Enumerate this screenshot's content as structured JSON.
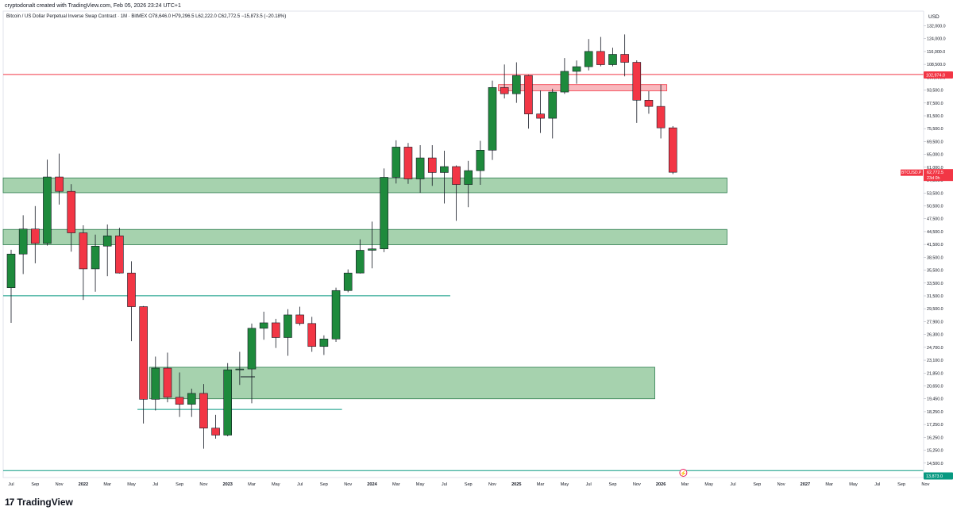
{
  "header": {
    "creator_line": "cryptodonalt created with TradingView.com, Feb 05, 2026 23:24 UTC+1",
    "symbol_line": "Bitcoin / US Dollar Perpetual Inverse Swap Contract · 1M · BitMEX  O78,646.0  H79,296.5  L62,222.0  C62,772.5  −15,873.5 (−20.18%)"
  },
  "logo": {
    "mark": "17",
    "text": "TradingView"
  },
  "price_scale": {
    "currency": "USD",
    "ticks": [
      "132,000.0",
      "124,000.0",
      "116,000.0",
      "108,500.0",
      "100,500.0",
      "93,500.0",
      "87,500.0",
      "81,500.0",
      "75,500.0",
      "69,500.0",
      "65,000.0",
      "61,000.0",
      "57,500.0",
      "53,500.0",
      "50,500.0",
      "47,500.0",
      "44,500.0",
      "41,500.0",
      "38,500.0",
      "35,500.0",
      "33,500.0",
      "31,500.0",
      "29,500.0",
      "27,900.0",
      "26,300.0",
      "24,700.0",
      "23,100.0",
      "21,850.0",
      "20,650.0",
      "19,450.0",
      "18,250.0",
      "17,250.0",
      "16,250.0",
      "15,250.0",
      "14,500.0",
      "13,873.0"
    ],
    "ticks_top_value": 132000,
    "top_marker": {
      "label": "102,974.0",
      "color": "#f23645"
    },
    "last_price_marker": {
      "symbol": "BTCUSD.P",
      "price": "62,772.5",
      "countdown": "23d 0h",
      "color": "#f23645"
    },
    "bottom_marker": {
      "label": "13,873.0",
      "color": "#089981"
    }
  },
  "time_axis": [
    "Jul",
    "Sep",
    "Nov",
    "2022",
    "Mar",
    "May",
    "Jul",
    "Sep",
    "Nov",
    "2023",
    "Mar",
    "May",
    "Jul",
    "Sep",
    "Nov",
    "2024",
    "Mar",
    "May",
    "Jul",
    "Sep",
    "Nov",
    "2025",
    "Mar",
    "May",
    "Jul",
    "Sep",
    "Nov",
    "2026",
    "Mar",
    "May",
    "Jul",
    "Sep",
    "Nov",
    "2027",
    "Mar",
    "May",
    "Jul",
    "Sep",
    "Nov"
  ],
  "chart_data": {
    "type": "candlestick",
    "timeframe": "1M",
    "colors": {
      "up": "#1e8a3c",
      "down": "#f23645"
    },
    "candles": [
      {
        "d": "2021-07",
        "o": 35000,
        "h": 42400,
        "l": 29300,
        "c": 41500
      },
      {
        "d": "2021-08",
        "o": 41500,
        "h": 50500,
        "l": 37500,
        "c": 47100
      },
      {
        "d": "2021-09",
        "o": 47100,
        "h": 52900,
        "l": 39600,
        "c": 43800
      },
      {
        "d": "2021-10",
        "o": 43800,
        "h": 66900,
        "l": 43300,
        "c": 61300
      },
      {
        "d": "2021-11",
        "o": 61300,
        "h": 69000,
        "l": 53300,
        "c": 57000
      },
      {
        "d": "2021-12",
        "o": 57000,
        "h": 59100,
        "l": 42000,
        "c": 46200
      },
      {
        "d": "2022-01",
        "o": 46200,
        "h": 48000,
        "l": 32900,
        "c": 38500
      },
      {
        "d": "2022-02",
        "o": 38500,
        "h": 45800,
        "l": 34300,
        "c": 43200
      },
      {
        "d": "2022-03",
        "o": 43200,
        "h": 48200,
        "l": 37100,
        "c": 45500
      },
      {
        "d": "2022-04",
        "o": 45500,
        "h": 47400,
        "l": 37600,
        "c": 37700
      },
      {
        "d": "2022-05",
        "o": 37700,
        "h": 40000,
        "l": 26700,
        "c": 31800
      },
      {
        "d": "2022-06",
        "o": 31800,
        "h": 31900,
        "l": 17600,
        "c": 19900
      },
      {
        "d": "2022-07",
        "o": 19900,
        "h": 24700,
        "l": 18800,
        "c": 23300
      },
      {
        "d": "2022-08",
        "o": 23300,
        "h": 25200,
        "l": 19600,
        "c": 20100
      },
      {
        "d": "2022-09",
        "o": 20100,
        "h": 22800,
        "l": 18200,
        "c": 19400
      },
      {
        "d": "2022-10",
        "o": 19400,
        "h": 21000,
        "l": 18200,
        "c": 20500
      },
      {
        "d": "2022-11",
        "o": 20500,
        "h": 21500,
        "l": 15500,
        "c": 17200
      },
      {
        "d": "2022-12",
        "o": 17200,
        "h": 18400,
        "l": 16300,
        "c": 16600
      },
      {
        "d": "2023-01",
        "o": 16600,
        "h": 23900,
        "l": 16500,
        "c": 23100
      },
      {
        "d": "2023-02",
        "o": 23100,
        "h": 25300,
        "l": 21400,
        "c": 23200
      },
      {
        "d": "2023-03",
        "o": 23200,
        "h": 29200,
        "l": 19500,
        "c": 28500
      },
      {
        "d": "2023-04",
        "o": 28500,
        "h": 31000,
        "l": 26900,
        "c": 29300
      },
      {
        "d": "2023-05",
        "o": 29300,
        "h": 29900,
        "l": 25800,
        "c": 27200
      },
      {
        "d": "2023-06",
        "o": 27200,
        "h": 31400,
        "l": 24800,
        "c": 30500
      },
      {
        "d": "2023-07",
        "o": 30500,
        "h": 31800,
        "l": 28900,
        "c": 29200
      },
      {
        "d": "2023-08",
        "o": 29200,
        "h": 30200,
        "l": 25300,
        "c": 26000
      },
      {
        "d": "2023-09",
        "o": 26000,
        "h": 27500,
        "l": 24900,
        "c": 27000
      },
      {
        "d": "2023-10",
        "o": 27000,
        "h": 35000,
        "l": 26600,
        "c": 34500
      },
      {
        "d": "2023-11",
        "o": 34500,
        "h": 38400,
        "l": 34200,
        "c": 37700
      },
      {
        "d": "2023-12",
        "o": 37700,
        "h": 44700,
        "l": 37600,
        "c": 42300
      },
      {
        "d": "2024-01",
        "o": 42300,
        "h": 48900,
        "l": 38600,
        "c": 42600
      },
      {
        "d": "2024-02",
        "o": 42600,
        "h": 64000,
        "l": 41900,
        "c": 61200
      },
      {
        "d": "2024-03",
        "o": 61200,
        "h": 73800,
        "l": 59300,
        "c": 71300
      },
      {
        "d": "2024-04",
        "o": 71300,
        "h": 72800,
        "l": 59200,
        "c": 60700
      },
      {
        "d": "2024-05",
        "o": 60700,
        "h": 72000,
        "l": 56600,
        "c": 67500
      },
      {
        "d": "2024-06",
        "o": 67500,
        "h": 72000,
        "l": 58600,
        "c": 62700
      },
      {
        "d": "2024-07",
        "o": 62700,
        "h": 70000,
        "l": 53600,
        "c": 64600
      },
      {
        "d": "2024-08",
        "o": 64600,
        "h": 65000,
        "l": 49100,
        "c": 59000
      },
      {
        "d": "2024-09",
        "o": 59000,
        "h": 66500,
        "l": 52600,
        "c": 63300
      },
      {
        "d": "2024-10",
        "o": 63300,
        "h": 73600,
        "l": 58900,
        "c": 70200
      },
      {
        "d": "2024-11",
        "o": 70200,
        "h": 99800,
        "l": 66800,
        "c": 96400
      },
      {
        "d": "2024-12",
        "o": 96400,
        "h": 108300,
        "l": 91200,
        "c": 93400
      },
      {
        "d": "2025-01",
        "o": 93400,
        "h": 109500,
        "l": 89200,
        "c": 102400
      },
      {
        "d": "2025-02",
        "o": 102400,
        "h": 102700,
        "l": 78300,
        "c": 84300
      },
      {
        "d": "2025-03",
        "o": 84300,
        "h": 95000,
        "l": 76600,
        "c": 82500
      },
      {
        "d": "2025-04",
        "o": 82500,
        "h": 95800,
        "l": 74500,
        "c": 94200
      },
      {
        "d": "2025-05",
        "o": 94200,
        "h": 111900,
        "l": 93300,
        "c": 104600
      },
      {
        "d": "2025-06",
        "o": 104600,
        "h": 110500,
        "l": 98200,
        "c": 107100
      },
      {
        "d": "2025-07",
        "o": 107100,
        "h": 123200,
        "l": 105100,
        "c": 115700
      },
      {
        "d": "2025-08",
        "o": 115700,
        "h": 124500,
        "l": 107300,
        "c": 108200
      },
      {
        "d": "2025-09",
        "o": 108200,
        "h": 117900,
        "l": 107300,
        "c": 114000
      },
      {
        "d": "2025-10",
        "o": 114000,
        "h": 126100,
        "l": 102000,
        "c": 109500
      },
      {
        "d": "2025-11",
        "o": 109500,
        "h": 110600,
        "l": 80600,
        "c": 90400
      },
      {
        "d": "2025-12",
        "o": 90400,
        "h": 94600,
        "l": 84400,
        "c": 87600
      },
      {
        "d": "2026-01",
        "o": 87600,
        "h": 97900,
        "l": 74500,
        "c": 78600
      },
      {
        "d": "2026-02",
        "o": 78600,
        "h": 79300,
        "l": 62200,
        "c": 62772.5
      }
    ],
    "horizontal_lines": [
      {
        "price": 102974.0,
        "color": "#f23645"
      },
      {
        "price": 13873.0,
        "color": "#089981"
      }
    ],
    "partial_lines": [
      {
        "price": 33600,
        "from": "2021-06",
        "to": "2024-07",
        "color": "#089981"
      },
      {
        "price": 18900,
        "from": "2022-06",
        "to": "2023-10",
        "color": "#089981"
      },
      {
        "price": 22300,
        "from": "2023-03",
        "to": "2023-03",
        "color": "#131722"
      }
    ],
    "zones": [
      {
        "top": 61000,
        "bottom": 56600,
        "from": "2021-06",
        "to": "2026-06",
        "color": "#9ccda5",
        "border": "#2e7d4f"
      },
      {
        "top": 47000,
        "bottom": 43500,
        "from": "2021-06",
        "to": "2026-06",
        "color": "#9ccda5",
        "border": "#2e7d4f"
      },
      {
        "top": 23400,
        "bottom": 19950,
        "from": "2022-07",
        "to": "2025-12",
        "color": "#9ccda5",
        "border": "#2e7d4f"
      },
      {
        "top": 97800,
        "bottom": 94800,
        "from": "2024-12",
        "to": "2026-01",
        "color": "#f7b0b6",
        "border": "#f23645"
      }
    ],
    "ylim": [
      13500,
      132000
    ],
    "scale": "log"
  }
}
